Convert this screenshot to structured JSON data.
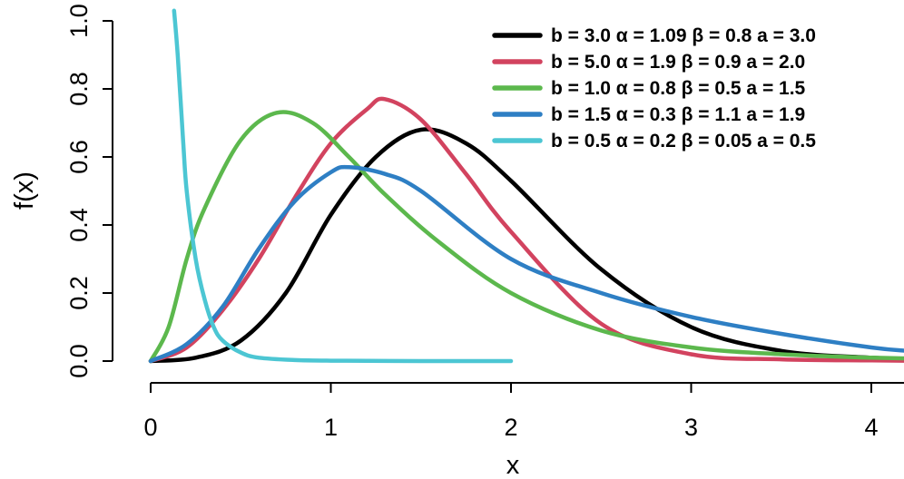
{
  "chart_data": {
    "type": "line",
    "title": "",
    "xlabel": "x",
    "ylabel": "f(x)",
    "xlim": [
      -0.1,
      4.2
    ],
    "ylim": [
      -0.05,
      1.03
    ],
    "x_ticks": [
      0,
      1,
      2,
      3,
      4
    ],
    "y_ticks": [
      0.0,
      0.2,
      0.4,
      0.6,
      0.8,
      1.0
    ],
    "x_tick_labels": [
      "0",
      "1",
      "2",
      "3",
      "4"
    ],
    "y_tick_labels": [
      "0.0",
      "0.2",
      "0.4",
      "0.6",
      "0.8",
      "1.0"
    ],
    "grid": false,
    "legend_position": "top-right",
    "series": [
      {
        "name": "b = 3.0  α = 1.09  β = 0.8  a = 3.0",
        "color": "#000000",
        "x": [
          0,
          0.25,
          0.5,
          0.75,
          1.0,
          1.25,
          1.5,
          1.75,
          2.0,
          2.5,
          3.0,
          3.5,
          4.0,
          4.2
        ],
        "y": [
          0.0,
          0.01,
          0.06,
          0.2,
          0.43,
          0.6,
          0.68,
          0.64,
          0.53,
          0.27,
          0.1,
          0.03,
          0.01,
          0.006
        ]
      },
      {
        "name": "b = 5.0  α = 1.9  β = 0.9  a = 2.0",
        "color": "#D2435F",
        "x": [
          0,
          0.2,
          0.4,
          0.6,
          0.8,
          1.0,
          1.2,
          1.3,
          1.5,
          1.75,
          2.0,
          2.5,
          3.0,
          3.5,
          4.0,
          4.2
        ],
        "y": [
          0.0,
          0.04,
          0.15,
          0.3,
          0.48,
          0.64,
          0.74,
          0.77,
          0.71,
          0.55,
          0.38,
          0.11,
          0.02,
          0.005,
          0.002,
          0.001
        ]
      },
      {
        "name": "b = 1.0  α = 0.8  β = 0.5  a = 1.5",
        "color": "#5CB84D",
        "x": [
          0,
          0.1,
          0.2,
          0.3,
          0.5,
          0.7,
          0.9,
          1.1,
          1.3,
          1.6,
          2.0,
          2.5,
          3.0,
          3.5,
          4.0,
          4.2
        ],
        "y": [
          0.0,
          0.1,
          0.3,
          0.45,
          0.65,
          0.73,
          0.7,
          0.6,
          0.49,
          0.35,
          0.2,
          0.09,
          0.04,
          0.02,
          0.01,
          0.008
        ]
      },
      {
        "name": "b = 1.5  α = 0.3  β = 1.1  a = 1.9",
        "color": "#2E7FC4",
        "x": [
          0,
          0.2,
          0.4,
          0.6,
          0.8,
          1.0,
          1.1,
          1.3,
          1.5,
          2.0,
          2.5,
          3.0,
          3.5,
          4.0,
          4.2
        ],
        "y": [
          0.0,
          0.05,
          0.16,
          0.33,
          0.47,
          0.555,
          0.57,
          0.55,
          0.5,
          0.3,
          0.2,
          0.13,
          0.08,
          0.04,
          0.03
        ]
      },
      {
        "name": "b = 0.5  α = 0.2  β = 0.05  a = 0.5",
        "color": "#4CC6D3",
        "x": [
          0.13,
          0.15,
          0.18,
          0.2,
          0.25,
          0.3,
          0.35,
          0.4,
          0.5,
          0.6,
          0.8,
          1.0,
          1.5,
          2.0
        ],
        "y": [
          1.03,
          0.9,
          0.65,
          0.5,
          0.3,
          0.18,
          0.1,
          0.06,
          0.025,
          0.01,
          0.003,
          0.001,
          0.0,
          0.0
        ]
      }
    ]
  }
}
